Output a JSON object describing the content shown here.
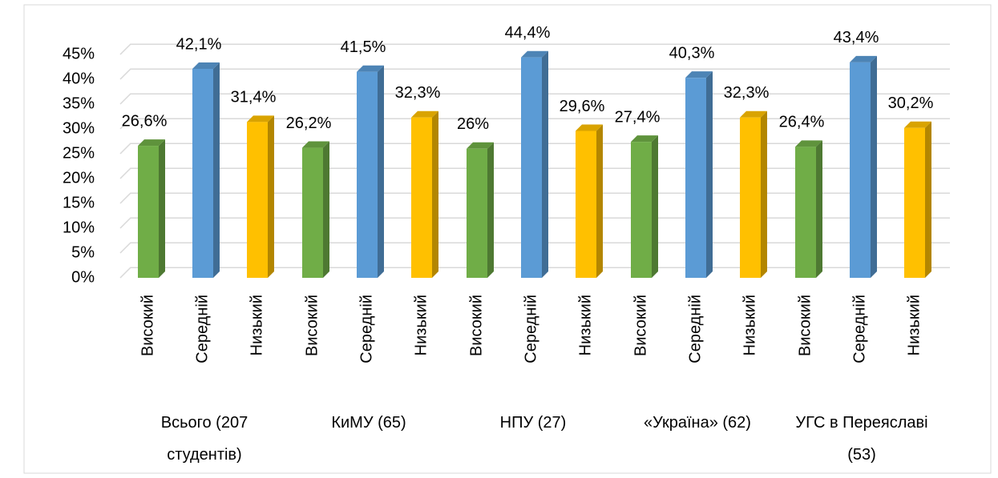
{
  "chart_data": {
    "type": "bar3d",
    "categories": [
      "Всього (207 студентів)",
      "КиМУ (65)",
      "НПУ (27)",
      "«Україна» (62)",
      "УГС в Переяславі (53)"
    ],
    "series": [
      {
        "name": "Високий",
        "color": "#70ad47",
        "values": [
          26.6,
          26.2,
          26,
          27.4,
          26.4
        ],
        "value_labels": [
          "26,6%",
          "26,2%",
          "26%",
          "27,4%",
          "26,4%"
        ]
      },
      {
        "name": "Середній",
        "color": "#5b9bd5",
        "values": [
          42.1,
          41.5,
          44.4,
          40.3,
          43.4
        ],
        "value_labels": [
          "42,1%",
          "41,5%",
          "44,4%",
          "40,3%",
          "43,4%"
        ]
      },
      {
        "name": "Низький",
        "color": "#ffc000",
        "values": [
          31.4,
          32.3,
          29.6,
          32.3,
          30.2
        ],
        "value_labels": [
          "31,4%",
          "32,3%",
          "29,6%",
          "32,3%",
          "30,2%"
        ]
      }
    ],
    "ylim": [
      0,
      45
    ],
    "yticks": [
      {
        "value": 0,
        "label": "0%"
      },
      {
        "value": 5,
        "label": "5%"
      },
      {
        "value": 10,
        "label": "10%"
      },
      {
        "value": 15,
        "label": "15%"
      },
      {
        "value": 20,
        "label": "20%"
      },
      {
        "value": 25,
        "label": "25%"
      },
      {
        "value": 30,
        "label": "30%"
      },
      {
        "value": 35,
        "label": "35%"
      },
      {
        "value": 40,
        "label": "40%"
      },
      {
        "value": 45,
        "label": "45%"
      }
    ],
    "grid": true
  }
}
